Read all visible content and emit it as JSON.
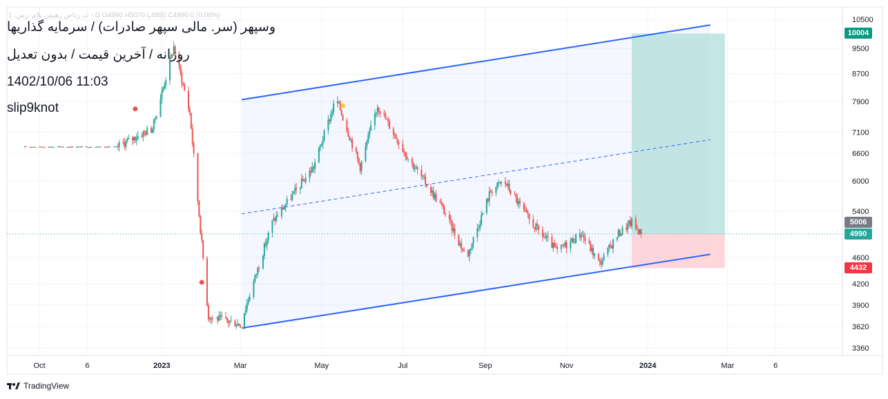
{
  "header": {
    "ohlc_legend": "1 ،ت رداص رهپس یلام .رس - D  O4990  H5070  L4950  C4990  0 (0.00%)",
    "title_lines": [
      "وسپهر (سر. مالی سپهر صادرات) / سرمایه گذاریها",
      "روزانه / آخرین قیمت / بدون تعدیل",
      "1402/10/06 11:03",
      "slip9knot"
    ]
  },
  "brand": {
    "name": "TradingView",
    "icon": "tradingview-logo"
  },
  "colors": {
    "up": "#26a69a",
    "down": "#ef5350",
    "channel": "#2962ff",
    "target_zone": "#b2dfdb",
    "stop_zone": "#ffcdd2",
    "grid": "#f0f3fa"
  },
  "chart_data": {
    "type": "candlestick",
    "title": "",
    "x_axis": {
      "ticks": [
        {
          "date": "2022-10-01",
          "label": "Oct"
        },
        {
          "date": "2022-11-06",
          "label": "6"
        },
        {
          "date": "2023-01-01",
          "label": "2023"
        },
        {
          "date": "2023-03-01",
          "label": "Mar"
        },
        {
          "date": "2023-05-01",
          "label": "May"
        },
        {
          "date": "2023-07-01",
          "label": "Jul"
        },
        {
          "date": "2023-09-01",
          "label": "Sep"
        },
        {
          "date": "2023-11-01",
          "label": "Nov"
        },
        {
          "date": "2024-01-01",
          "label": "2024"
        },
        {
          "date": "2024-03-01",
          "label": "Mar"
        },
        {
          "date": "2024-04-06",
          "label": "6"
        }
      ]
    },
    "y_axis": {
      "scale": "log",
      "range": [
        3260,
        10600
      ],
      "ticks": [
        3360,
        3620,
        3900,
        4200,
        4600,
        5400,
        6000,
        6600,
        7100,
        7900,
        8700,
        9500,
        10500
      ]
    },
    "price_labels": [
      {
        "value": 10004,
        "label": "10004",
        "kind": "target"
      },
      {
        "value": 5006,
        "label": "5006",
        "kind": "gray"
      },
      {
        "value": 4990,
        "label": "4990",
        "kind": "last"
      },
      {
        "value": 4432,
        "label": "4432",
        "kind": "stop"
      }
    ],
    "key_points": [
      {
        "date": "2022-09-20",
        "price": 6750
      },
      {
        "date": "2022-11-28",
        "price": 6750
      },
      {
        "date": "2022-12-25",
        "price": 7200
      },
      {
        "date": "2023-01-10",
        "price": 9550
      },
      {
        "date": "2023-01-22",
        "price": 7600
      },
      {
        "date": "2023-02-05",
        "price": 3750
      },
      {
        "date": "2023-03-01",
        "price": 3650
      },
      {
        "date": "2023-03-25",
        "price": 5200
      },
      {
        "date": "2023-04-25",
        "price": 6300
      },
      {
        "date": "2023-05-12",
        "price": 8000
      },
      {
        "date": "2023-05-30",
        "price": 6300
      },
      {
        "date": "2023-06-12",
        "price": 7800
      },
      {
        "date": "2023-07-05",
        "price": 6500
      },
      {
        "date": "2023-07-30",
        "price": 5500
      },
      {
        "date": "2023-08-18",
        "price": 4600
      },
      {
        "date": "2023-09-05",
        "price": 5800
      },
      {
        "date": "2023-09-15",
        "price": 6000
      },
      {
        "date": "2023-10-05",
        "price": 5200
      },
      {
        "date": "2023-10-25",
        "price": 4700
      },
      {
        "date": "2023-11-12",
        "price": 5000
      },
      {
        "date": "2023-11-26",
        "price": 4500
      },
      {
        "date": "2023-12-10",
        "price": 5000
      },
      {
        "date": "2023-12-20",
        "price": 5200
      },
      {
        "date": "2023-12-27",
        "price": 4990
      }
    ],
    "channel": {
      "upper": [
        {
          "date": "2023-03-02",
          "price": 7950
        },
        {
          "date": "2024-02-17",
          "price": 10300
        }
      ],
      "lower": [
        {
          "date": "2023-03-02",
          "price": 3600
        },
        {
          "date": "2024-02-17",
          "price": 4650
        }
      ],
      "mid": [
        {
          "date": "2023-03-02",
          "price": 5350
        },
        {
          "date": "2024-02-17",
          "price": 6920
        }
      ]
    },
    "position": {
      "start": "2023-12-20",
      "end": "2024-02-28",
      "entry": 4990,
      "target": 10004,
      "stop": 4432
    },
    "markers": [
      {
        "date": "2022-12-12",
        "price": 7700,
        "color": "#ef5350"
      },
      {
        "date": "2023-01-31",
        "price": 4220,
        "color": "#ef5350"
      },
      {
        "date": "2023-05-17",
        "price": 7780,
        "color": "#f7c948"
      }
    ]
  }
}
